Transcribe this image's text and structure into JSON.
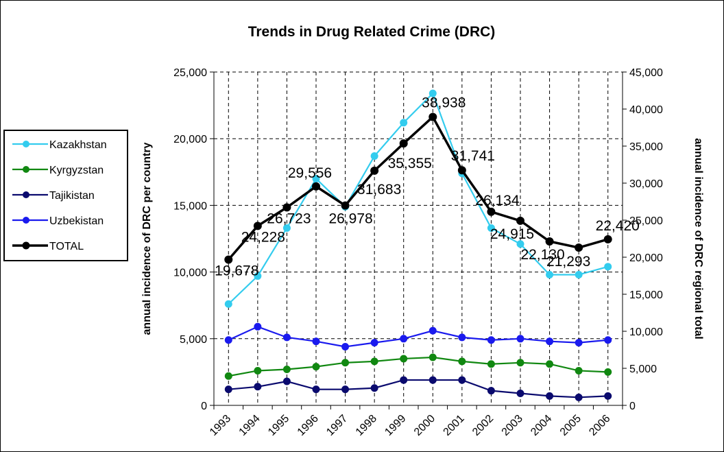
{
  "chart_data": {
    "type": "line",
    "title": "Trends in Drug Related Crime (DRC)",
    "ylabel": "annual incidence of DRC per country",
    "y2label": "annual incidence of DRC regional total",
    "categories": [
      "1993",
      "1994",
      "1995",
      "1996",
      "1997",
      "1998",
      "1999",
      "2000",
      "2001",
      "2002",
      "2003",
      "2004",
      "2005",
      "2006"
    ],
    "ylim": [
      0,
      25000
    ],
    "y2lim": [
      0,
      45000
    ],
    "yticks": [
      "0",
      "5,000",
      "10,000",
      "15,000",
      "20,000",
      "25,000"
    ],
    "y2ticks": [
      "0",
      "5,000",
      "10,000",
      "15,000",
      "20,000",
      "25,000",
      "30,000",
      "35,000",
      "40,000",
      "45,000"
    ],
    "grid": true,
    "legend_position": "left",
    "series": [
      {
        "name": "Kazakhstan",
        "axis": "left",
        "color": "#33ccee",
        "values": [
          7600,
          9700,
          13300,
          17000,
          14900,
          18700,
          21200,
          23400,
          17400,
          13300,
          12100,
          9800,
          9800,
          10400
        ]
      },
      {
        "name": "Kyrgyzstan",
        "axis": "left",
        "color": "#118811",
        "values": [
          2200,
          2600,
          2700,
          2900,
          3200,
          3300,
          3500,
          3600,
          3300,
          3100,
          3200,
          3100,
          2600,
          2500
        ]
      },
      {
        "name": "Tajikistan",
        "axis": "left",
        "color": "#0a0a6e",
        "values": [
          1200,
          1400,
          1800,
          1200,
          1200,
          1300,
          1900,
          1900,
          1900,
          1100,
          900,
          700,
          600,
          700
        ]
      },
      {
        "name": "Uzbekistan",
        "axis": "left",
        "color": "#1a1aee",
        "values": [
          4900,
          5900,
          5100,
          4800,
          4400,
          4700,
          5000,
          5600,
          5100,
          4900,
          5000,
          4800,
          4700,
          4900
        ]
      },
      {
        "name": "TOTAL",
        "axis": "right",
        "color": "#000000",
        "values": [
          19678,
          24228,
          26723,
          29556,
          26978,
          31683,
          35355,
          38938,
          31741,
          26134,
          24915,
          22130,
          21293,
          22420
        ]
      }
    ],
    "data_labels": [
      "19,678",
      "24,228",
      "26,723",
      "29,556",
      "26,978",
      "31,683",
      "35,355",
      "38,938",
      "31,741",
      "26,134",
      "24,915",
      "22,130",
      "21,293",
      "22,420"
    ]
  }
}
